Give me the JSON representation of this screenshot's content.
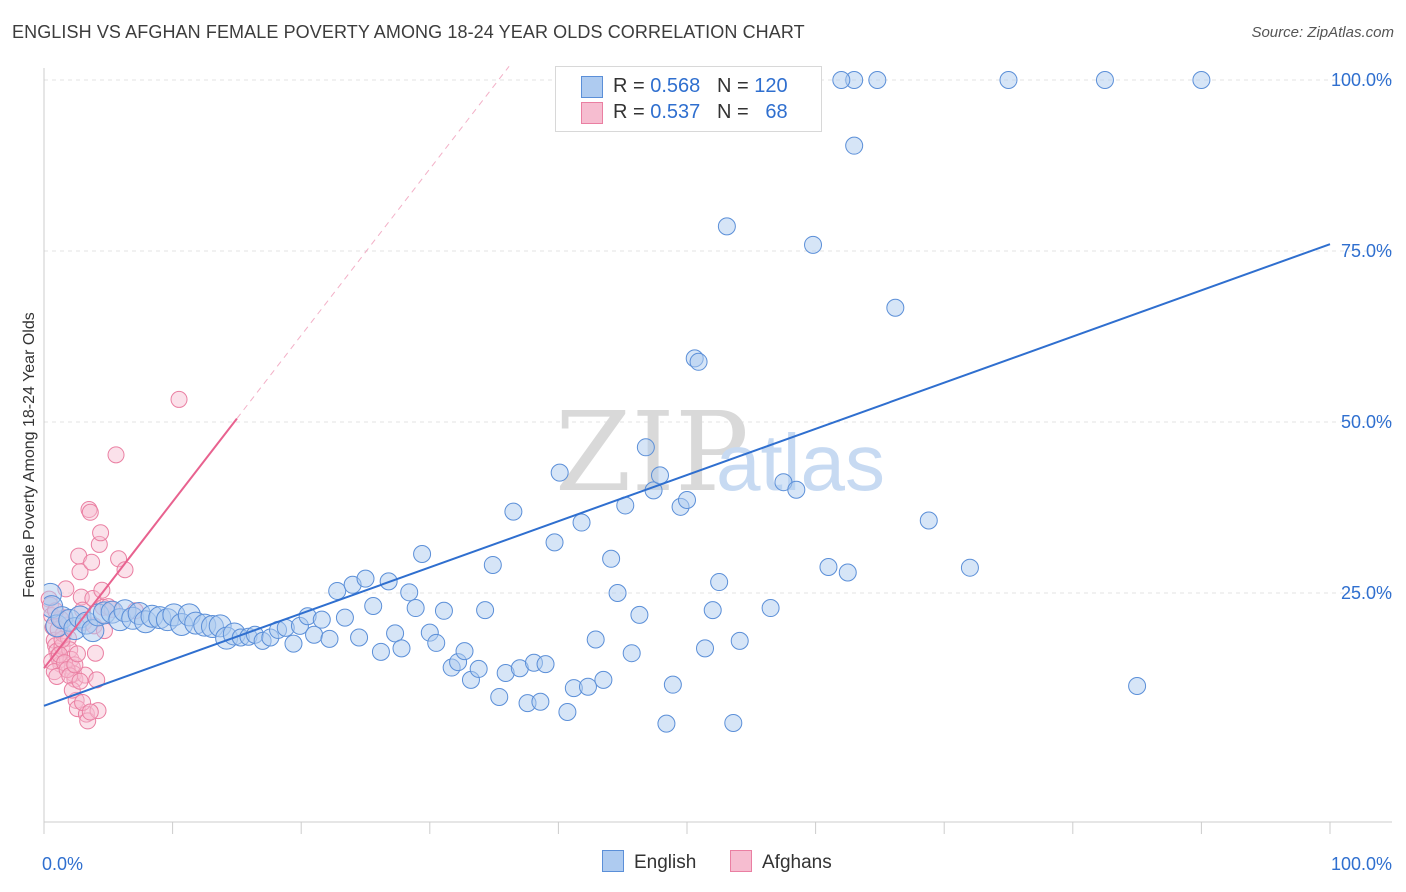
{
  "title": "ENGLISH VS AFGHAN FEMALE POVERTY AMONG 18-24 YEAR OLDS CORRELATION CHART",
  "source": "Source: ZipAtlas.com",
  "watermark": {
    "zip": "ZIP",
    "atlas": "atlas"
  },
  "legend": {
    "english": {
      "r_label": "R = ",
      "r_value": "0.568",
      "n_label": "N = ",
      "n_value": "120"
    },
    "afghans": {
      "r_label": "R = ",
      "r_value": "0.537",
      "n_label": "N = ",
      "n_value": "68"
    }
  },
  "colors": {
    "english_fill": "#aecbf0",
    "english_stroke": "#5b8fd8",
    "english_line": "#2f6fcf",
    "afghan_fill": "#f6bdd0",
    "afghan_stroke": "#ea7fa2",
    "afghan_line": "#e8628f",
    "grid": "#e3e3e3",
    "axis_text": "#2f6fcf"
  },
  "chart_data": {
    "type": "scatter",
    "title": "ENGLISH VS AFGHAN FEMALE POVERTY AMONG 18-24 YEAR OLDS CORRELATION CHART",
    "xlabel": "",
    "ylabel": "Female Poverty Among 18-24 Year Olds",
    "xlim": [
      0,
      100
    ],
    "ylim": [
      0,
      100
    ],
    "x_tick_labels": [
      "0.0%",
      "100.0%"
    ],
    "y_tick_labels": [
      "25.0%",
      "50.0%",
      "75.0%",
      "100.0%"
    ],
    "y_ticks": [
      25,
      50,
      75,
      100
    ],
    "grid": true,
    "legend_placement": "bottom",
    "series": [
      {
        "name": "English",
        "r": 0.568,
        "n": 120,
        "trend": {
          "x": [
            0,
            100
          ],
          "y": [
            8.5,
            76.0
          ]
        },
        "points": [
          [
            0.5,
            24.8
          ],
          [
            0.6,
            23.0
          ],
          [
            1.0,
            20.2
          ],
          [
            1.4,
            21.4
          ],
          [
            2.0,
            21.0
          ],
          [
            2.4,
            19.8
          ],
          [
            2.8,
            21.5
          ],
          [
            3.3,
            20.6
          ],
          [
            3.8,
            19.5
          ],
          [
            4.2,
            21.8
          ],
          [
            4.7,
            22.1
          ],
          [
            5.3,
            22.2
          ],
          [
            5.9,
            21.1
          ],
          [
            6.3,
            22.4
          ],
          [
            6.9,
            21.3
          ],
          [
            7.4,
            22.0
          ],
          [
            7.9,
            20.8
          ],
          [
            8.4,
            21.6
          ],
          [
            9.0,
            21.4
          ],
          [
            9.6,
            21.1
          ],
          [
            10.1,
            21.8
          ],
          [
            10.7,
            20.4
          ],
          [
            11.3,
            21.8
          ],
          [
            11.8,
            20.6
          ],
          [
            12.5,
            20.3
          ],
          [
            13.1,
            20.1
          ],
          [
            13.7,
            20.2
          ],
          [
            14.2,
            18.4
          ],
          [
            14.8,
            19.0
          ],
          [
            15.3,
            18.5
          ],
          [
            15.9,
            18.6
          ],
          [
            16.4,
            18.9
          ],
          [
            17.0,
            18.0
          ],
          [
            17.6,
            18.5
          ],
          [
            18.2,
            19.6
          ],
          [
            18.8,
            19.9
          ],
          [
            19.4,
            17.6
          ],
          [
            19.9,
            20.2
          ],
          [
            20.5,
            21.6
          ],
          [
            21.0,
            18.9
          ],
          [
            21.6,
            21.1
          ],
          [
            22.2,
            18.3
          ],
          [
            22.8,
            25.3
          ],
          [
            23.4,
            21.4
          ],
          [
            24.0,
            26.2
          ],
          [
            24.5,
            18.5
          ],
          [
            25.0,
            27.1
          ],
          [
            25.6,
            23.1
          ],
          [
            26.2,
            16.4
          ],
          [
            26.8,
            26.7
          ],
          [
            27.3,
            19.1
          ],
          [
            27.8,
            16.9
          ],
          [
            28.4,
            25.1
          ],
          [
            28.9,
            22.8
          ],
          [
            29.4,
            30.7
          ],
          [
            30.0,
            19.2
          ],
          [
            30.5,
            17.7
          ],
          [
            31.1,
            22.4
          ],
          [
            31.7,
            14.1
          ],
          [
            32.2,
            14.9
          ],
          [
            32.7,
            16.5
          ],
          [
            33.2,
            12.3
          ],
          [
            33.8,
            13.9
          ],
          [
            34.3,
            22.5
          ],
          [
            34.9,
            29.1
          ],
          [
            35.4,
            9.8
          ],
          [
            35.9,
            13.3
          ],
          [
            36.5,
            36.9
          ],
          [
            37.0,
            14.0
          ],
          [
            37.6,
            8.9
          ],
          [
            38.1,
            14.8
          ],
          [
            38.6,
            9.1
          ],
          [
            39.0,
            14.6
          ],
          [
            39.7,
            32.4
          ],
          [
            40.1,
            42.6
          ],
          [
            40.7,
            7.6
          ],
          [
            41.2,
            11.1
          ],
          [
            41.8,
            35.3
          ],
          [
            42.3,
            11.3
          ],
          [
            42.9,
            18.2
          ],
          [
            43.5,
            12.3
          ],
          [
            44.1,
            30.0
          ],
          [
            44.6,
            25.0
          ],
          [
            45.2,
            37.8
          ],
          [
            45.7,
            16.2
          ],
          [
            46.3,
            21.8
          ],
          [
            46.8,
            46.3
          ],
          [
            47.4,
            40.0
          ],
          [
            47.9,
            42.2
          ],
          [
            48.4,
            5.9
          ],
          [
            48.9,
            11.6
          ],
          [
            49.5,
            37.6
          ],
          [
            50.0,
            38.6
          ],
          [
            50.6,
            59.3
          ],
          [
            50.9,
            58.8
          ],
          [
            51.4,
            16.9
          ],
          [
            52.0,
            22.5
          ],
          [
            52.5,
            26.6
          ],
          [
            53.1,
            78.6
          ],
          [
            53.6,
            6.0
          ],
          [
            54.1,
            18.0
          ],
          [
            55.0,
            100.0
          ],
          [
            53.0,
            100.0
          ],
          [
            56.5,
            22.8
          ],
          [
            57.5,
            41.2
          ],
          [
            58.5,
            40.1
          ],
          [
            61.0,
            28.8
          ],
          [
            62.5,
            28.0
          ],
          [
            63.0,
            100.0
          ],
          [
            62.0,
            100.0
          ],
          [
            64.8,
            100.0
          ],
          [
            63.0,
            90.4
          ],
          [
            59.8,
            75.9
          ],
          [
            66.2,
            66.7
          ],
          [
            68.8,
            35.6
          ],
          [
            72.0,
            28.7
          ],
          [
            75.0,
            100.0
          ],
          [
            82.5,
            100.0
          ],
          [
            90.0,
            100.0
          ],
          [
            85.0,
            11.4
          ]
        ]
      },
      {
        "name": "Afghans",
        "r": 0.537,
        "n": 68,
        "trend": {
          "x": [
            0,
            15
          ],
          "y": [
            14.0,
            50.5
          ]
        },
        "points": [
          [
            0.4,
            24.1
          ],
          [
            0.5,
            23.2
          ],
          [
            0.6,
            21.7
          ],
          [
            0.7,
            20.0
          ],
          [
            0.8,
            18.1
          ],
          [
            0.9,
            17.3
          ],
          [
            1.0,
            16.5
          ],
          [
            1.1,
            15.8
          ],
          [
            1.2,
            15.2
          ],
          [
            1.3,
            14.6
          ],
          [
            1.4,
            17.2
          ],
          [
            1.5,
            19.0
          ],
          [
            1.6,
            21.4
          ],
          [
            1.7,
            25.6
          ],
          [
            1.8,
            20.3
          ],
          [
            1.9,
            18.4
          ],
          [
            2.0,
            16.7
          ],
          [
            2.1,
            15.3
          ],
          [
            2.2,
            14.1
          ],
          [
            2.3,
            13.2
          ],
          [
            2.4,
            12.4
          ],
          [
            2.5,
            9.3
          ],
          [
            2.6,
            8.1
          ],
          [
            2.7,
            30.4
          ],
          [
            2.8,
            28.1
          ],
          [
            2.9,
            24.4
          ],
          [
            3.0,
            22.5
          ],
          [
            3.1,
            20.7
          ],
          [
            3.2,
            13.0
          ],
          [
            3.3,
            7.3
          ],
          [
            3.4,
            6.3
          ],
          [
            3.5,
            37.2
          ],
          [
            3.6,
            36.8
          ],
          [
            3.7,
            29.5
          ],
          [
            3.8,
            24.2
          ],
          [
            3.9,
            20.2
          ],
          [
            4.0,
            16.2
          ],
          [
            4.1,
            12.3
          ],
          [
            4.2,
            7.8
          ],
          [
            4.3,
            32.1
          ],
          [
            4.4,
            33.8
          ],
          [
            4.5,
            25.4
          ],
          [
            4.6,
            22.9
          ],
          [
            4.7,
            19.5
          ],
          [
            5.0,
            23.0
          ],
          [
            5.3,
            22.6
          ],
          [
            5.6,
            45.2
          ],
          [
            5.8,
            30.0
          ],
          [
            6.3,
            28.4
          ],
          [
            7.1,
            22.4
          ],
          [
            10.5,
            53.3
          ],
          [
            0.6,
            15.0
          ],
          [
            0.8,
            13.5
          ],
          [
            1.0,
            12.8
          ],
          [
            1.2,
            16.0
          ],
          [
            1.4,
            18.2
          ],
          [
            1.6,
            14.8
          ],
          [
            1.8,
            13.8
          ],
          [
            2.0,
            12.9
          ],
          [
            2.2,
            10.8
          ],
          [
            2.4,
            14.5
          ],
          [
            2.6,
            16.1
          ],
          [
            2.8,
            12.1
          ],
          [
            3.0,
            9.0
          ],
          [
            3.6,
            7.6
          ],
          [
            1.1,
            19.7
          ],
          [
            1.3,
            21.2
          ],
          [
            0.9,
            22.4
          ]
        ]
      }
    ]
  },
  "bottom_legend": {
    "english": "English",
    "afghans": "Afghans"
  }
}
